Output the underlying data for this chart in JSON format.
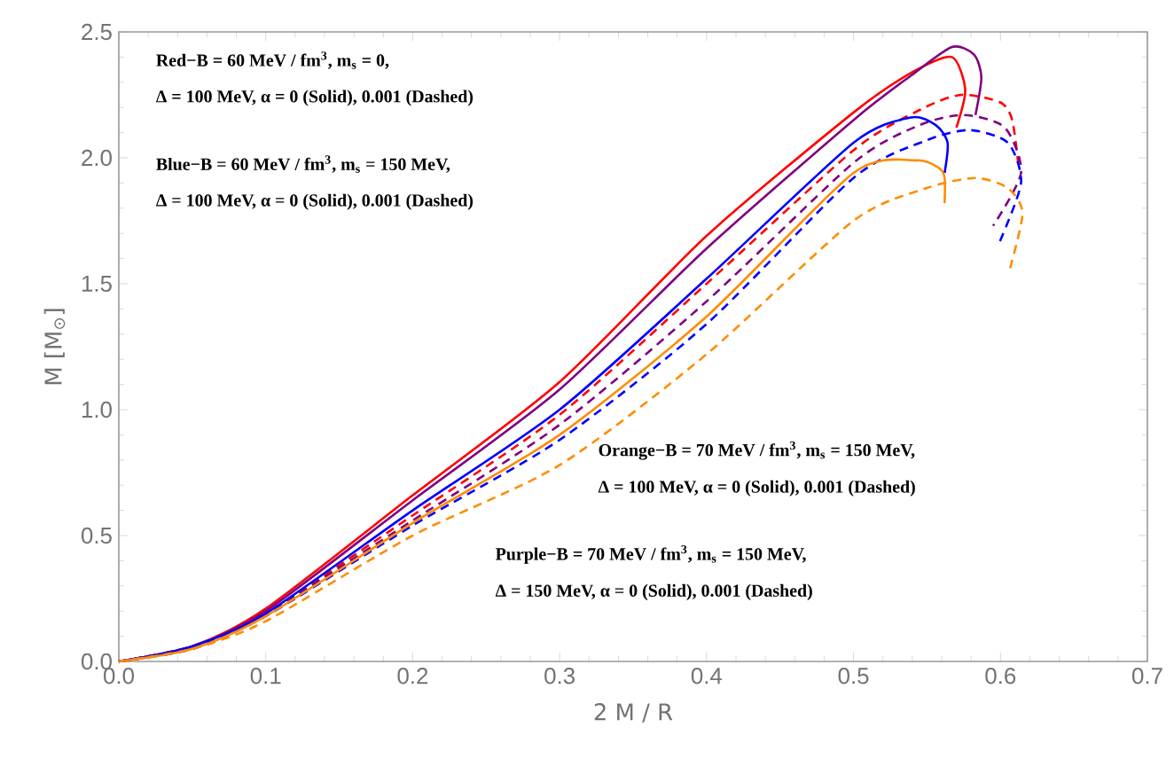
{
  "chart_data": {
    "type": "line",
    "xlabel": "2 M / R",
    "ylabel": "M [M$_{⊙}$]",
    "xlim": [
      0,
      0.7
    ],
    "ylim": [
      0,
      2.5
    ],
    "xticks": [
      {
        "value": 0,
        "label": "0.0"
      },
      {
        "value": 0.1,
        "label": "0.1"
      },
      {
        "value": 0.2,
        "label": "0.2"
      },
      {
        "value": 0.3,
        "label": "0.3"
      },
      {
        "value": 0.4,
        "label": "0.4"
      },
      {
        "value": 0.5,
        "label": "0.5"
      },
      {
        "value": 0.6,
        "label": "0.6"
      },
      {
        "value": 0.7,
        "label": "0.7"
      }
    ],
    "yticks": [
      {
        "value": 0,
        "label": "0.0"
      },
      {
        "value": 0.5,
        "label": "0.5"
      },
      {
        "value": 1,
        "label": "1.0"
      },
      {
        "value": 1.5,
        "label": "1.5"
      },
      {
        "value": 2,
        "label": "2.0"
      },
      {
        "value": 2.5,
        "label": "2.5"
      }
    ],
    "grid": false,
    "marker": "none",
    "annotations": [
      "Red−B = 60 MeV / fm$^{3}$, m$_{s}$ = 0,",
      "Δ = 100 MeV, α = 0 (Solid), 0.001 (Dashed)",
      "Blue−B = 60 MeV / fm$^{3}$, m$_{s}$ = 150 MeV,",
      "Δ = 100 MeV, α = 0 (Solid), 0.001 (Dashed)",
      "Orange−B = 70 MeV / fm$^{3}$, m$_{s}$ = 150 MeV,",
      "Δ = 100 MeV, α = 0 (Solid), 0.001 (Dashed)",
      "Purple−B = 70 MeV / fm$^{3}$, m$_{s}$ = 150 MeV,",
      "Δ = 150 MeV, α = 0 (Solid), 0.001 (Dashed)"
    ],
    "series": [
      {
        "color": "#ff0000",
        "line_style": "solid",
        "x": [
          0,
          0.05,
          0.1,
          0.2,
          0.3,
          0.4,
          0.5,
          0.54,
          0.567,
          0.576,
          0.57
        ],
        "values": [
          0,
          0.06,
          0.21,
          0.66,
          1.11,
          1.69,
          2.18,
          2.34,
          2.4,
          2.27,
          2.12
        ]
      },
      {
        "color": "#800080",
        "line_style": "solid",
        "x": [
          0,
          0.05,
          0.1,
          0.2,
          0.3,
          0.4,
          0.5,
          0.54,
          0.567,
          0.582,
          0.587,
          0.583
        ],
        "values": [
          0,
          0.06,
          0.2,
          0.64,
          1.08,
          1.64,
          2.15,
          2.33,
          2.44,
          2.41,
          2.32,
          2.17
        ]
      },
      {
        "color": "#ff0000",
        "line_style": "dashed",
        "x": [
          0,
          0.05,
          0.1,
          0.2,
          0.3,
          0.4,
          0.5,
          0.545,
          0.573,
          0.6,
          0.608,
          0.612
        ],
        "values": [
          0,
          0.06,
          0.19,
          0.58,
          0.98,
          1.5,
          2.03,
          2.19,
          2.25,
          2.22,
          2.15,
          1.98
        ]
      },
      {
        "color": "#800080",
        "line_style": "dashed",
        "x": [
          0,
          0.05,
          0.1,
          0.2,
          0.3,
          0.4,
          0.5,
          0.545,
          0.575,
          0.603,
          0.614,
          0.595
        ],
        "values": [
          0,
          0.06,
          0.19,
          0.56,
          0.94,
          1.43,
          1.98,
          2.13,
          2.17,
          2.12,
          1.94,
          1.73
        ]
      },
      {
        "color": "#0000ff",
        "line_style": "solid",
        "x": [
          0,
          0.05,
          0.1,
          0.2,
          0.3,
          0.4,
          0.5,
          0.539,
          0.556,
          0.564,
          0.562
        ],
        "values": [
          0,
          0.06,
          0.19,
          0.6,
          1.0,
          1.52,
          2.06,
          2.16,
          2.13,
          2.06,
          1.94
        ]
      },
      {
        "color": "#0000ff",
        "line_style": "dashed",
        "x": [
          0,
          0.05,
          0.1,
          0.2,
          0.3,
          0.4,
          0.5,
          0.55,
          0.579,
          0.605,
          0.614,
          0.599
        ],
        "values": [
          0,
          0.05,
          0.18,
          0.54,
          0.88,
          1.34,
          1.92,
          2.07,
          2.11,
          2.06,
          1.9,
          1.66
        ]
      },
      {
        "color": "#ff8c00",
        "line_style": "solid",
        "x": [
          0,
          0.05,
          0.1,
          0.2,
          0.3,
          0.4,
          0.5,
          0.543,
          0.558,
          0.562,
          0.562
        ],
        "values": [
          0,
          0.05,
          0.18,
          0.55,
          0.9,
          1.37,
          1.94,
          1.99,
          1.96,
          1.92,
          1.82
        ]
      },
      {
        "color": "#ff8c00",
        "line_style": "dashed",
        "x": [
          0,
          0.05,
          0.1,
          0.2,
          0.3,
          0.4,
          0.5,
          0.55,
          0.583,
          0.605,
          0.615,
          0.606
        ],
        "values": [
          0,
          0.05,
          0.16,
          0.5,
          0.78,
          1.22,
          1.75,
          1.88,
          1.92,
          1.88,
          1.78,
          1.55
        ]
      }
    ]
  }
}
